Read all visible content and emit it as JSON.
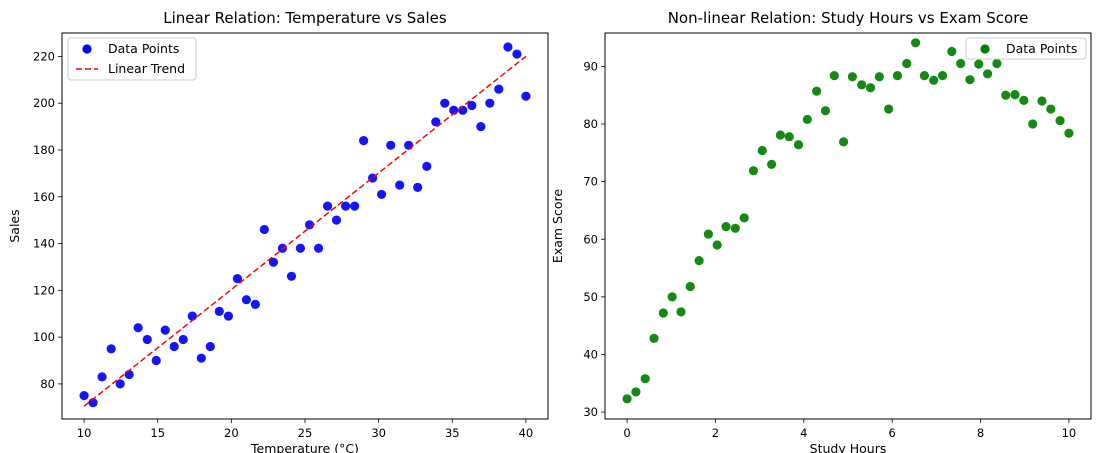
{
  "chart_data": [
    {
      "type": "scatter",
      "title": "Linear Relation: Temperature vs Sales",
      "xlabel": "Temperature (°C)",
      "ylabel": "Sales",
      "xlim": [
        8.5,
        41.5
      ],
      "ylim": [
        65,
        230
      ],
      "xticks": [
        10,
        15,
        20,
        25,
        30,
        35,
        40
      ],
      "yticks": [
        80,
        100,
        120,
        140,
        160,
        180,
        200,
        220
      ],
      "grid": false,
      "legend_position": "top-left",
      "series": [
        {
          "name": "Data Points",
          "kind": "scatter",
          "color": "#0000ff",
          "x": [
            10.0,
            10.61,
            11.22,
            11.84,
            12.45,
            13.06,
            13.67,
            14.29,
            14.9,
            15.51,
            16.12,
            16.73,
            17.35,
            17.96,
            18.57,
            19.18,
            19.8,
            20.41,
            21.02,
            21.63,
            22.24,
            22.86,
            23.47,
            24.08,
            24.69,
            25.31,
            25.92,
            26.53,
            27.14,
            27.76,
            28.37,
            28.98,
            29.59,
            30.2,
            30.82,
            31.43,
            32.04,
            32.65,
            33.27,
            33.88,
            34.49,
            35.1,
            35.71,
            36.33,
            36.94,
            37.55,
            38.16,
            38.78,
            39.39,
            40.0
          ],
          "y": [
            75,
            72,
            83,
            95,
            80,
            84,
            104,
            99,
            90,
            103,
            96,
            99,
            109,
            91,
            96,
            111,
            109,
            125,
            116,
            114,
            146,
            132,
            138,
            126,
            138,
            148,
            138,
            156,
            150,
            156,
            156,
            184,
            168,
            161,
            182,
            165,
            182,
            164,
            173,
            192,
            200,
            197,
            197,
            199,
            190,
            200,
            206,
            224,
            221,
            203
          ]
        },
        {
          "name": "Linear Trend",
          "kind": "line",
          "color": "#ff0000",
          "dash": "dashed",
          "x": [
            10,
            40
          ],
          "y": [
            70.5,
            220
          ]
        }
      ]
    },
    {
      "type": "scatter",
      "title": "Non-linear Relation: Study Hours vs Exam Score",
      "xlabel": "Study Hours",
      "ylabel": "Exam Score",
      "xlim": [
        -0.5,
        10.5
      ],
      "ylim": [
        28.8,
        95.8
      ],
      "xticks": [
        0,
        2,
        4,
        6,
        8,
        10
      ],
      "yticks": [
        30,
        40,
        50,
        60,
        70,
        80,
        90
      ],
      "grid": false,
      "legend_position": "top-right",
      "series": [
        {
          "name": "Data Points",
          "kind": "scatter",
          "color": "#008000",
          "x": [
            0.0,
            0.2,
            0.41,
            0.61,
            0.82,
            1.02,
            1.22,
            1.43,
            1.63,
            1.84,
            2.04,
            2.24,
            2.45,
            2.65,
            2.86,
            3.06,
            3.27,
            3.47,
            3.67,
            3.88,
            4.08,
            4.29,
            4.49,
            4.69,
            4.9,
            5.1,
            5.31,
            5.51,
            5.71,
            5.92,
            6.12,
            6.33,
            6.53,
            6.73,
            6.94,
            7.14,
            7.35,
            7.55,
            7.76,
            7.96,
            8.16,
            8.37,
            8.57,
            8.78,
            8.98,
            9.18,
            9.39,
            9.59,
            9.8,
            10.0
          ],
          "y": [
            32.3,
            33.5,
            35.8,
            42.8,
            47.2,
            50.0,
            47.4,
            51.8,
            56.3,
            60.9,
            59.0,
            62.2,
            61.9,
            63.7,
            71.9,
            75.4,
            73.0,
            78.1,
            77.8,
            76.4,
            80.8,
            85.7,
            82.3,
            88.4,
            76.9,
            88.2,
            86.8,
            86.3,
            88.2,
            82.6,
            88.4,
            90.5,
            94.1,
            88.4,
            87.6,
            88.4,
            92.6,
            90.5,
            87.7,
            90.4,
            88.7,
            90.5,
            85.0,
            85.1,
            84.1,
            80.0,
            84.0,
            82.6,
            80.6,
            78.4
          ]
        }
      ]
    }
  ]
}
